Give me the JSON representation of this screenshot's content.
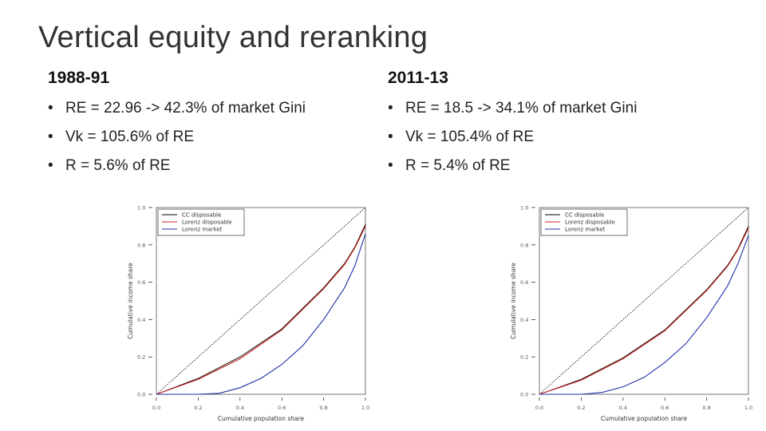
{
  "slide": {
    "title": "Vertical equity and reranking",
    "left": {
      "heading": "1988-91",
      "bullets": [
        "RE = 22.96 -> 42.3% of market Gini",
        "Vk = 105.6% of RE",
        "R = 5.6% of RE"
      ]
    },
    "right": {
      "heading": "2011-13",
      "bullets": [
        "RE = 18.5 -> 34.1% of market Gini",
        "Vk = 105.4% of RE",
        "R = 5.4% of RE"
      ]
    }
  },
  "chart_data": [
    {
      "type": "line",
      "title": "",
      "xlabel": "Cumulative population share",
      "ylabel": "Cumulative income share",
      "xlim": [
        0,
        1
      ],
      "ylim": [
        0,
        1
      ],
      "xticks": [
        "0.0",
        "0.2",
        "0.4",
        "0.6",
        "0.8",
        "1.0"
      ],
      "yticks": [
        "0.0",
        "0.2",
        "0.4",
        "0.6",
        "0.8",
        "1.0"
      ],
      "legend_position": "top-left",
      "grid": false,
      "series": [
        {
          "name": "CC disposable",
          "color": "#000000",
          "x": [
            0,
            0.2,
            0.4,
            0.6,
            0.8,
            0.9,
            0.95,
            1.0
          ],
          "y": [
            0,
            0.085,
            0.2,
            0.35,
            0.57,
            0.7,
            0.79,
            0.91
          ]
        },
        {
          "name": "Lorenz disposable",
          "color": "#cc2222",
          "x": [
            0,
            0.2,
            0.4,
            0.6,
            0.8,
            0.9,
            0.95,
            1.0
          ],
          "y": [
            0,
            0.08,
            0.19,
            0.345,
            0.565,
            0.695,
            0.785,
            0.9
          ]
        },
        {
          "name": "Lorenz market",
          "color": "#1f2fa8",
          "x": [
            0,
            0.2,
            0.3,
            0.4,
            0.5,
            0.6,
            0.7,
            0.8,
            0.9,
            0.95,
            1.0
          ],
          "y": [
            0,
            0.0,
            0.005,
            0.035,
            0.085,
            0.16,
            0.26,
            0.4,
            0.57,
            0.69,
            0.86
          ]
        }
      ]
    },
    {
      "type": "line",
      "title": "",
      "xlabel": "Cumulative population share",
      "ylabel": "Cumulative income share",
      "xlim": [
        0,
        1
      ],
      "ylim": [
        0,
        1
      ],
      "xticks": [
        "0.0",
        "0.2",
        "0.4",
        "0.6",
        "0.8",
        "1.0"
      ],
      "yticks": [
        "0.0",
        "0.2",
        "0.4",
        "0.6",
        "0.8",
        "1.0"
      ],
      "legend_position": "top-left",
      "grid": false,
      "series": [
        {
          "name": "CC disposable",
          "color": "#000000",
          "x": [
            0,
            0.2,
            0.4,
            0.6,
            0.8,
            0.9,
            0.95,
            1.0
          ],
          "y": [
            0,
            0.08,
            0.195,
            0.345,
            0.56,
            0.69,
            0.78,
            0.9
          ]
        },
        {
          "name": "Lorenz disposable",
          "color": "#cc2222",
          "x": [
            0,
            0.2,
            0.4,
            0.6,
            0.8,
            0.9,
            0.95,
            1.0
          ],
          "y": [
            0,
            0.075,
            0.19,
            0.34,
            0.555,
            0.685,
            0.775,
            0.89
          ]
        },
        {
          "name": "Lorenz market",
          "color": "#1f2fa8",
          "x": [
            0,
            0.2,
            0.3,
            0.4,
            0.5,
            0.6,
            0.7,
            0.8,
            0.9,
            0.95,
            1.0
          ],
          "y": [
            0,
            0.0,
            0.01,
            0.04,
            0.09,
            0.17,
            0.27,
            0.41,
            0.58,
            0.7,
            0.85
          ]
        }
      ]
    }
  ]
}
